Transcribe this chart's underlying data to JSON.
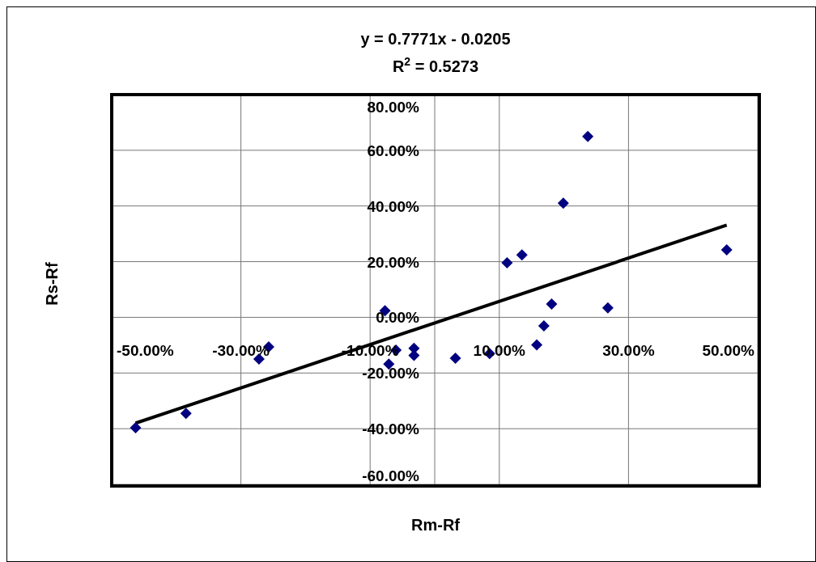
{
  "chart_data": {
    "type": "scatter",
    "annotations": [
      "y = 0.7771x - 0.0205",
      "R$^{2}$ = 0.5273"
    ],
    "xlabel": "Rm-Rf",
    "ylabel": "Rs-Rf",
    "xlim": [
      -50,
      50
    ],
    "ylim": [
      -60,
      80
    ],
    "xticks": [
      {
        "value": -50,
        "label": "-50.00%"
      },
      {
        "value": -30,
        "label": "-30.00%"
      },
      {
        "value": -10,
        "label": "-10.00%"
      },
      {
        "value": 0,
        "label": null
      },
      {
        "value": 10,
        "label": "10.00%"
      },
      {
        "value": 30,
        "label": "30.00%"
      },
      {
        "value": 50,
        "label": "50.00%"
      }
    ],
    "yticks": [
      {
        "value": -60,
        "label": "-60.00%"
      },
      {
        "value": -40,
        "label": "-40.00%"
      },
      {
        "value": -20,
        "label": "-20.00%"
      },
      {
        "value": 0,
        "label": "0.00%"
      },
      {
        "value": 20,
        "label": "20.00%"
      },
      {
        "value": 40,
        "label": "40.00%"
      },
      {
        "value": 60,
        "label": "60.00%"
      },
      {
        "value": 80,
        "label": "80.00%"
      }
    ],
    "grid": true,
    "marker": "diamond",
    "series": [
      {
        "color": "#000080",
        "x": [
          -46.3,
          -38.5,
          -27.2,
          -25.7,
          -7.7,
          -7.1,
          -6.0,
          -3.2,
          -3.2,
          3.2,
          8.5,
          11.2,
          13.5,
          15.8,
          16.9,
          18.1,
          19.9,
          23.7,
          26.8,
          45.2
        ],
        "values": [
          -39.7,
          -34.5,
          -15.0,
          -10.6,
          2.4,
          -16.8,
          -11.8,
          -11.1,
          -13.7,
          -14.7,
          -13.0,
          19.6,
          22.4,
          -9.9,
          -3.1,
          4.8,
          41.0,
          65.0,
          3.4,
          24.2
        ]
      },
      {
        "type": "line",
        "color": "#000000",
        "marker": "none",
        "x": [
          -46.3,
          45.2
        ],
        "values": [
          -38.0,
          33.1
        ]
      }
    ]
  }
}
